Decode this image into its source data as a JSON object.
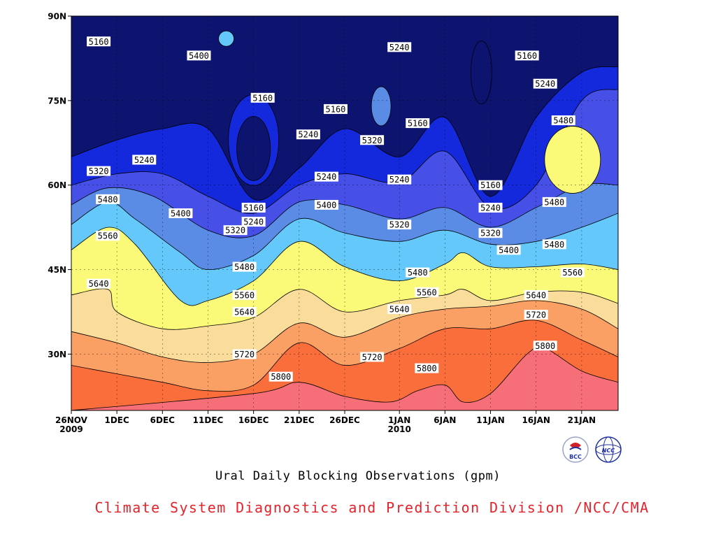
{
  "chart_data": {
    "type": "area",
    "title": "Ural Daily Blocking Observations (gpm)",
    "xlabel": "",
    "ylabel": "",
    "x_ticks": [
      {
        "date": "2009-11-26",
        "label": "26NOV",
        "sublabel": "2009"
      },
      {
        "date": "2009-12-01",
        "label": "1DEC",
        "sublabel": ""
      },
      {
        "date": "2009-12-06",
        "label": "6DEC",
        "sublabel": ""
      },
      {
        "date": "2009-12-11",
        "label": "11DEC",
        "sublabel": ""
      },
      {
        "date": "2009-12-16",
        "label": "16DEC",
        "sublabel": ""
      },
      {
        "date": "2009-12-21",
        "label": "21DEC",
        "sublabel": ""
      },
      {
        "date": "2009-12-26",
        "label": "26DEC",
        "sublabel": ""
      },
      {
        "date": "2010-01-01",
        "label": "1JAN",
        "sublabel": "2010"
      },
      {
        "date": "2010-01-06",
        "label": "6JAN",
        "sublabel": ""
      },
      {
        "date": "2010-01-11",
        "label": "11JAN",
        "sublabel": ""
      },
      {
        "date": "2010-01-16",
        "label": "16JAN",
        "sublabel": ""
      },
      {
        "date": "2010-01-21",
        "label": "21JAN",
        "sublabel": ""
      }
    ],
    "y_ticks": [
      {
        "value": 30,
        "label": "30N"
      },
      {
        "value": 45,
        "label": "45N"
      },
      {
        "value": 60,
        "label": "60N"
      },
      {
        "value": 75,
        "label": "75N"
      },
      {
        "value": 90,
        "label": "90N"
      }
    ],
    "ylim": [
      20,
      90
    ],
    "xlim": [
      "2009-11-26",
      "2010-01-25"
    ],
    "grid": true,
    "levels": [
      5160,
      5240,
      5320,
      5400,
      5480,
      5560,
      5640,
      5720,
      5800
    ],
    "level_colors": [
      "#0c1470",
      "#1428dc",
      "#4650e6",
      "#5a8ce6",
      "#64c8fa",
      "#fafa78",
      "#fadc9b",
      "#faa064",
      "#fa6e3c",
      "#f56e78"
    ],
    "contour_boundaries": {
      "5800": [
        {
          "date": "2009-11-26",
          "lat": 20
        },
        {
          "date": "2009-12-16",
          "lat": 23
        },
        {
          "date": "2009-12-21",
          "lat": 25
        },
        {
          "date": "2009-12-26",
          "lat": 22.5
        },
        {
          "date": "2009-12-31",
          "lat": 21.5
        },
        {
          "date": "2010-01-03",
          "lat": 23.5
        },
        {
          "date": "2010-01-06",
          "lat": 24.5
        },
        {
          "date": "2010-01-08",
          "lat": 21.5
        },
        {
          "date": "2010-01-11",
          "lat": 23
        },
        {
          "date": "2010-01-15",
          "lat": 30
        },
        {
          "date": "2010-01-17",
          "lat": 31
        },
        {
          "date": "2010-01-21",
          "lat": 27
        },
        {
          "date": "2010-01-25",
          "lat": 25
        }
      ],
      "5720": [
        {
          "date": "2009-11-26",
          "lat": 28
        },
        {
          "date": "2009-12-01",
          "lat": 26.5
        },
        {
          "date": "2009-12-06",
          "lat": 25
        },
        {
          "date": "2009-12-11",
          "lat": 23.5
        },
        {
          "date": "2009-12-16",
          "lat": 24.5
        },
        {
          "date": "2009-12-21",
          "lat": 32
        },
        {
          "date": "2009-12-26",
          "lat": 28
        },
        {
          "date": "2010-01-01",
          "lat": 31
        },
        {
          "date": "2010-01-06",
          "lat": 34.5
        },
        {
          "date": "2010-01-11",
          "lat": 34.5
        },
        {
          "date": "2010-01-16",
          "lat": 36
        },
        {
          "date": "2010-01-21",
          "lat": 32.5
        },
        {
          "date": "2010-01-25",
          "lat": 29.5
        }
      ],
      "5640": [
        {
          "date": "2009-11-26",
          "lat": 34
        },
        {
          "date": "2009-12-01",
          "lat": 32
        },
        {
          "date": "2009-12-06",
          "lat": 29.5
        },
        {
          "date": "2009-12-11",
          "lat": 28.5
        },
        {
          "date": "2009-12-16",
          "lat": 30
        },
        {
          "date": "2009-12-21",
          "lat": 35.5
        },
        {
          "date": "2009-12-26",
          "lat": 33
        },
        {
          "date": "2010-01-01",
          "lat": 36.5
        },
        {
          "date": "2010-01-06",
          "lat": 38
        },
        {
          "date": "2010-01-11",
          "lat": 38.5
        },
        {
          "date": "2010-01-16",
          "lat": 39.5
        },
        {
          "date": "2010-01-21",
          "lat": 38
        },
        {
          "date": "2010-01-25",
          "lat": 34.5
        }
      ],
      "5560": [
        {
          "date": "2009-11-26",
          "lat": 40.5
        },
        {
          "date": "2009-11-30",
          "lat": 41.5
        },
        {
          "date": "2009-12-01",
          "lat": 37.5
        },
        {
          "date": "2009-12-06",
          "lat": 34.5
        },
        {
          "date": "2009-12-11",
          "lat": 35
        },
        {
          "date": "2009-12-16",
          "lat": 36.5
        },
        {
          "date": "2009-12-21",
          "lat": 41.5
        },
        {
          "date": "2009-12-26",
          "lat": 37.5
        },
        {
          "date": "2010-01-01",
          "lat": 39.5
        },
        {
          "date": "2010-01-06",
          "lat": 40.5
        },
        {
          "date": "2010-01-08",
          "lat": 41.5
        },
        {
          "date": "2010-01-11",
          "lat": 39.5
        },
        {
          "date": "2010-01-16",
          "lat": 41
        },
        {
          "date": "2010-01-21",
          "lat": 41
        },
        {
          "date": "2010-01-25",
          "lat": 39
        }
      ],
      "5480": [
        {
          "date": "2009-11-26",
          "lat": 48.5
        },
        {
          "date": "2009-11-30",
          "lat": 52.5
        },
        {
          "date": "2009-12-03",
          "lat": 49.5
        },
        {
          "date": "2009-12-08",
          "lat": 39.5
        },
        {
          "date": "2009-12-11",
          "lat": 39.5
        },
        {
          "date": "2009-12-16",
          "lat": 43
        },
        {
          "date": "2009-12-21",
          "lat": 50
        },
        {
          "date": "2009-12-26",
          "lat": 45.5
        },
        {
          "date": "2010-01-01",
          "lat": 43
        },
        {
          "date": "2010-01-06",
          "lat": 46
        },
        {
          "date": "2010-01-08",
          "lat": 48
        },
        {
          "date": "2010-01-11",
          "lat": 45.5
        },
        {
          "date": "2010-01-16",
          "lat": 45.5
        },
        {
          "date": "2010-01-21",
          "lat": 46
        },
        {
          "date": "2010-01-25",
          "lat": 45
        }
      ],
      "5400": [
        {
          "date": "2009-11-26",
          "lat": 53
        },
        {
          "date": "2009-11-30",
          "lat": 57
        },
        {
          "date": "2009-12-03",
          "lat": 54
        },
        {
          "date": "2009-12-08",
          "lat": 48
        },
        {
          "date": "2009-12-11",
          "lat": 45
        },
        {
          "date": "2009-12-16",
          "lat": 47.5
        },
        {
          "date": "2009-12-21",
          "lat": 54
        },
        {
          "date": "2009-12-26",
          "lat": 51.5
        },
        {
          "date": "2010-01-01",
          "lat": 50
        },
        {
          "date": "2010-01-06",
          "lat": 52
        },
        {
          "date": "2010-01-11",
          "lat": 49.5
        },
        {
          "date": "2010-01-16",
          "lat": 50
        },
        {
          "date": "2010-01-21",
          "lat": 52.5
        },
        {
          "date": "2010-01-25",
          "lat": 55
        }
      ],
      "5320": [
        {
          "date": "2009-11-26",
          "lat": 56.5
        },
        {
          "date": "2009-11-30",
          "lat": 59.5
        },
        {
          "date": "2009-12-05",
          "lat": 58
        },
        {
          "date": "2009-12-11",
          "lat": 52
        },
        {
          "date": "2009-12-16",
          "lat": 51
        },
        {
          "date": "2009-12-21",
          "lat": 57
        },
        {
          "date": "2009-12-26",
          "lat": 56.5
        },
        {
          "date": "2010-01-01",
          "lat": 54
        },
        {
          "date": "2010-01-06",
          "lat": 56
        },
        {
          "date": "2010-01-11",
          "lat": 52.5
        },
        {
          "date": "2010-01-16",
          "lat": 56
        },
        {
          "date": "2010-01-21",
          "lat": 60
        },
        {
          "date": "2010-01-25",
          "lat": 60
        }
      ],
      "5240": [
        {
          "date": "2009-11-26",
          "lat": 60
        },
        {
          "date": "2009-12-01",
          "lat": 62
        },
        {
          "date": "2009-12-06",
          "lat": 62
        },
        {
          "date": "2009-12-11",
          "lat": 58
        },
        {
          "date": "2009-12-16",
          "lat": 55
        },
        {
          "date": "2009-12-21",
          "lat": 60
        },
        {
          "date": "2009-12-26",
          "lat": 62
        },
        {
          "date": "2010-01-01",
          "lat": 60.5
        },
        {
          "date": "2010-01-06",
          "lat": 66
        },
        {
          "date": "2010-01-11",
          "lat": 56
        },
        {
          "date": "2010-01-16",
          "lat": 60
        },
        {
          "date": "2010-01-21",
          "lat": 75
        },
        {
          "date": "2010-01-25",
          "lat": 77
        }
      ],
      "5160": [
        {
          "date": "2009-11-26",
          "lat": 65
        },
        {
          "date": "2009-12-01",
          "lat": 68
        },
        {
          "date": "2009-12-06",
          "lat": 70
        },
        {
          "date": "2009-12-11",
          "lat": 70
        },
        {
          "date": "2009-12-16",
          "lat": 57.5
        },
        {
          "date": "2009-12-21",
          "lat": 63
        },
        {
          "date": "2009-12-26",
          "lat": 70
        },
        {
          "date": "2010-01-01",
          "lat": 65
        },
        {
          "date": "2010-01-06",
          "lat": 72
        },
        {
          "date": "2010-01-11",
          "lat": 58
        },
        {
          "date": "2010-01-16",
          "lat": 72
        },
        {
          "date": "2010-01-21",
          "lat": 80
        },
        {
          "date": "2010-01-25",
          "lat": 81
        }
      ]
    },
    "secondary_features": [
      {
        "level": 5400,
        "kind": "closed-high",
        "center_date": "2009-12-13",
        "center_lat": 86,
        "fill_level": 5400
      },
      {
        "level": 5160,
        "kind": "closed-low",
        "center_date": "2009-12-16",
        "center_lat": 66.5,
        "fill_level": 5160
      },
      {
        "level": 5240,
        "kind": "closed-low-ring",
        "center_date": "2009-12-16",
        "center_lat": 68,
        "fill_level": 5240
      },
      {
        "level": 5320,
        "kind": "closed-high",
        "center_date": "2009-12-30",
        "center_lat": 74,
        "fill_level": 5320
      },
      {
        "level": 5480,
        "kind": "closed-high",
        "center_date": "2010-01-20",
        "center_lat": 64.5,
        "fill_level": 5480
      },
      {
        "level": 5160,
        "kind": "open-low",
        "center_date": "2010-01-10",
        "center_lat": 80,
        "fill_level": 5160
      }
    ],
    "contour_labels": [
      {
        "text": "5160",
        "date": "2009-11-29",
        "lat": 85.5
      },
      {
        "text": "5400",
        "date": "2009-12-10",
        "lat": 83
      },
      {
        "text": "5240",
        "date": "2010-01-01",
        "lat": 84.5
      },
      {
        "text": "5160",
        "date": "2010-01-15",
        "lat": 83
      },
      {
        "text": "5160",
        "date": "2009-12-17",
        "lat": 75.5
      },
      {
        "text": "5160",
        "date": "2009-12-25",
        "lat": 73.5
      },
      {
        "text": "5240",
        "date": "2010-01-17",
        "lat": 78
      },
      {
        "text": "5320",
        "date": "2009-12-29",
        "lat": 68
      },
      {
        "text": "5160",
        "date": "2010-01-03",
        "lat": 71
      },
      {
        "text": "5240",
        "date": "2009-12-22",
        "lat": 69
      },
      {
        "text": "5480",
        "date": "2010-01-19",
        "lat": 71.5
      },
      {
        "text": "5240",
        "date": "2009-12-04",
        "lat": 64.5
      },
      {
        "text": "5320",
        "date": "2009-11-29",
        "lat": 62.5
      },
      {
        "text": "5240",
        "date": "2009-12-24",
        "lat": 61.5
      },
      {
        "text": "5240",
        "date": "2010-01-01",
        "lat": 61
      },
      {
        "text": "5160",
        "date": "2010-01-11",
        "lat": 60
      },
      {
        "text": "5480",
        "date": "2009-11-30",
        "lat": 57.5
      },
      {
        "text": "5400",
        "date": "2009-12-08",
        "lat": 55
      },
      {
        "text": "5160",
        "date": "2009-12-16",
        "lat": 56
      },
      {
        "text": "5400",
        "date": "2009-12-24",
        "lat": 56.5
      },
      {
        "text": "5480",
        "date": "2010-01-18",
        "lat": 57
      },
      {
        "text": "5240",
        "date": "2010-01-11",
        "lat": 56
      },
      {
        "text": "5240",
        "date": "2009-12-16",
        "lat": 53.5
      },
      {
        "text": "5320",
        "date": "2010-01-01",
        "lat": 53
      },
      {
        "text": "5320",
        "date": "2009-12-14",
        "lat": 52
      },
      {
        "text": "5320",
        "date": "2010-01-11",
        "lat": 51.5
      },
      {
        "text": "5560",
        "date": "2009-11-30",
        "lat": 51
      },
      {
        "text": "5400",
        "date": "2010-01-13",
        "lat": 48.5
      },
      {
        "text": "5480",
        "date": "2010-01-18",
        "lat": 49.5
      },
      {
        "text": "5480",
        "date": "2009-12-15",
        "lat": 45.5
      },
      {
        "text": "5480",
        "date": "2010-01-03",
        "lat": 44.5
      },
      {
        "text": "5560",
        "date": "2010-01-20",
        "lat": 44.5
      },
      {
        "text": "5640",
        "date": "2009-11-29",
        "lat": 42.5
      },
      {
        "text": "5560",
        "date": "2009-12-15",
        "lat": 40.5
      },
      {
        "text": "5560",
        "date": "2010-01-04",
        "lat": 41
      },
      {
        "text": "5640",
        "date": "2010-01-16",
        "lat": 40.5
      },
      {
        "text": "5640",
        "date": "2009-12-15",
        "lat": 37.5
      },
      {
        "text": "5640",
        "date": "2010-01-01",
        "lat": 38
      },
      {
        "text": "5720",
        "date": "2010-01-16",
        "lat": 37
      },
      {
        "text": "5720",
        "date": "2009-12-15",
        "lat": 30
      },
      {
        "text": "5720",
        "date": "2009-12-29",
        "lat": 29.5
      },
      {
        "text": "5800",
        "date": "2010-01-17",
        "lat": 31.5
      },
      {
        "text": "5800",
        "date": "2010-01-04",
        "lat": 27.5
      },
      {
        "text": "5800",
        "date": "2009-12-19",
        "lat": 26
      }
    ]
  },
  "footer": {
    "title": "Ural Daily Blocking Observations (gpm)",
    "credit": "Climate System Diagnostics and Prediction Division /NCC/CMA",
    "credit_color": "#e6232b",
    "logos": [
      {
        "name": "bcc-logo",
        "text": "BCC"
      },
      {
        "name": "ncc-logo",
        "text": "NCC"
      }
    ]
  }
}
